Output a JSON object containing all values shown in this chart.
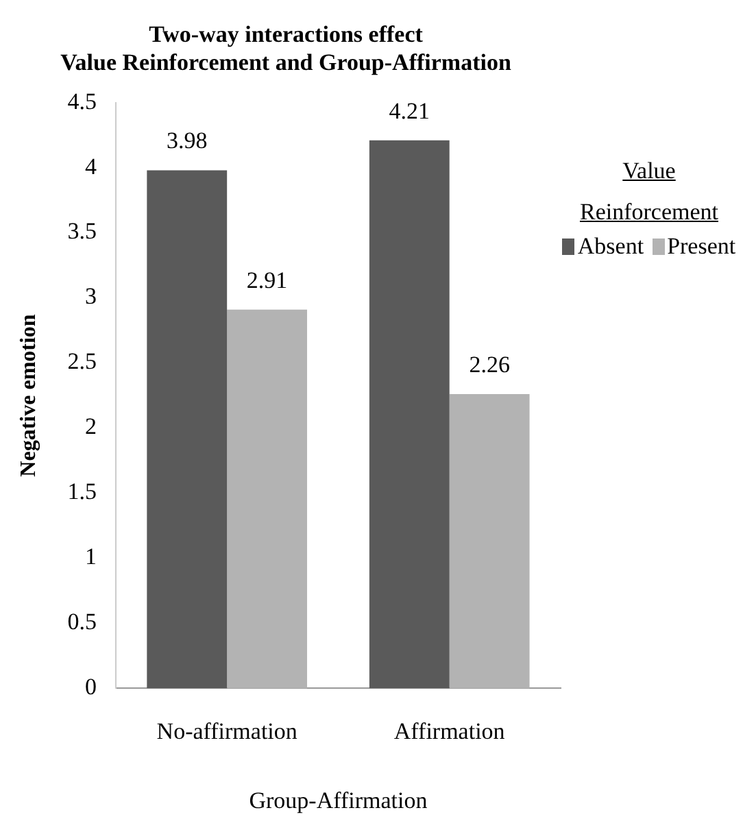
{
  "chart_data": {
    "type": "bar",
    "title": "Two-way interactions effect",
    "subtitle": "Value Reinforcement and Group-Affirmation",
    "xlabel": "Group-Affirmation",
    "ylabel": "Negative emotion",
    "legend_title": "Value Reinforcement",
    "categories": [
      "No-affirmation",
      "Affirmation"
    ],
    "series": [
      {
        "name": "Absent",
        "color": "#5a5a5a",
        "values": [
          3.98,
          4.21
        ]
      },
      {
        "name": "Present",
        "color": "#b3b3b3",
        "values": [
          2.91,
          2.26
        ]
      }
    ],
    "ylim": [
      0,
      4.5
    ],
    "yticks": [
      0,
      0.5,
      1,
      1.5,
      2,
      2.5,
      3,
      3.5,
      4,
      4.5
    ],
    "grid": false,
    "legend": "right",
    "data_labels": true
  }
}
